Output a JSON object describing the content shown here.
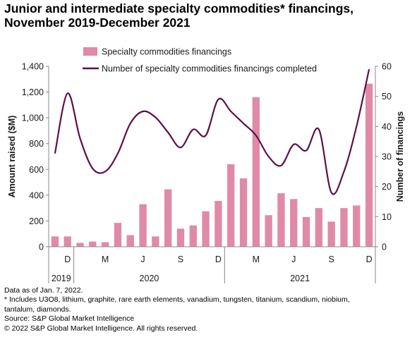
{
  "title_line1": "Junior and intermediate specialty commodities* financings,",
  "title_line2": "November 2019-December 2021",
  "notes": [
    "Data as of Jan. 7, 2022.",
    "* Includes U3O8, lithium, graphite, rare earth elements, vanadium, tungsten, titanium, scandium, niobium,",
    "tantalum, diamonds.",
    "Source: S&P Global Market Intelligence",
    "© 2022 S&P Global Market Intelligence. All rights reserved."
  ],
  "colors": {
    "bar": "#e08aa8",
    "line": "#5c1049",
    "axis": "#888888",
    "text": "#1a1a1a"
  },
  "chart_data": {
    "type": "bar+line",
    "title": "Junior and intermediate specialty commodities* financings, November 2019-December 2021",
    "ylabel_left": "Amount raised ($M)",
    "ylabel_right": "Number of financings",
    "ylim_left": [
      0,
      1400
    ],
    "ylim_right": [
      0,
      60
    ],
    "yticks_left": [
      "0",
      "200",
      "400",
      "600",
      "800",
      "1,000",
      "1,200",
      "1,400"
    ],
    "yticks_right": [
      "0",
      "10",
      "20",
      "30",
      "40",
      "50",
      "60"
    ],
    "month_labels": [
      "",
      "D",
      "",
      "",
      "M",
      "",
      "",
      "J",
      "",
      "",
      "S",
      "",
      "",
      "D",
      "",
      "",
      "M",
      "",
      "",
      "J",
      "",
      "",
      "S",
      "",
      "",
      "D"
    ],
    "year_groups": [
      {
        "label": "2019",
        "start": 0,
        "end": 1
      },
      {
        "label": "2020",
        "start": 2,
        "end": 13
      },
      {
        "label": "2021",
        "start": 14,
        "end": 25
      }
    ],
    "legend": {
      "bars": "Specialty commodities financings",
      "line": "Number of specialty commodities financings completed",
      "position": "top"
    },
    "series": [
      {
        "name": "Specialty commodities financings",
        "type": "bar",
        "axis": "left",
        "values": [
          80,
          80,
          30,
          40,
          35,
          185,
          90,
          330,
          80,
          445,
          140,
          165,
          275,
          355,
          640,
          530,
          1160,
          245,
          415,
          370,
          230,
          300,
          195,
          300,
          320,
          1265
        ]
      },
      {
        "name": "Number of specialty commodities financings completed",
        "type": "line",
        "axis": "right",
        "values": [
          31,
          51,
          36,
          26,
          25,
          31,
          41,
          45,
          43,
          38,
          33,
          39,
          37,
          49,
          45,
          41,
          37,
          30,
          27,
          34,
          32,
          39,
          18,
          25,
          40,
          59
        ]
      }
    ],
    "grid": false
  }
}
